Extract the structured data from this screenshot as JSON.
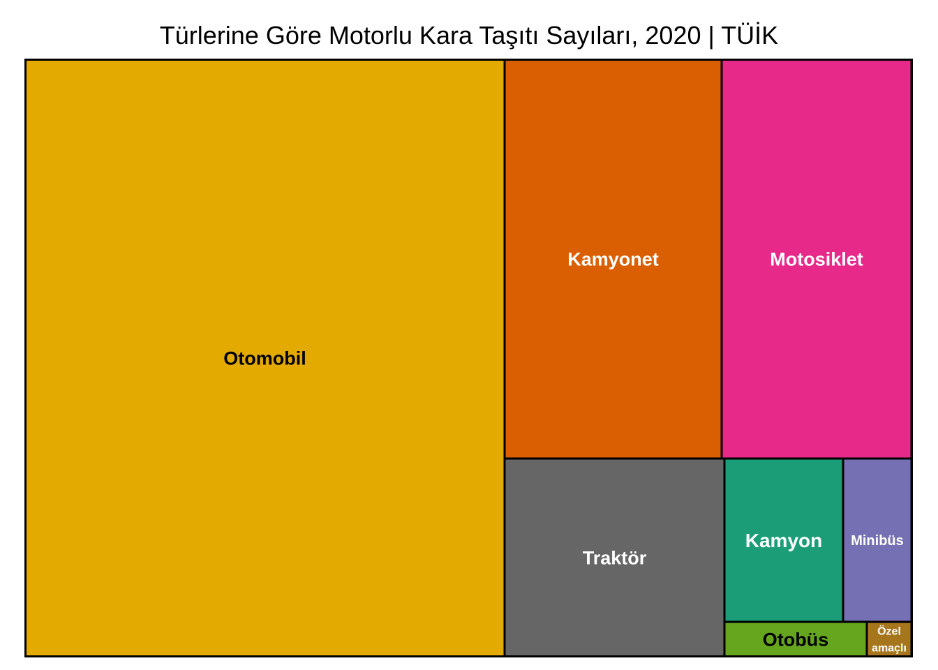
{
  "chart_data": {
    "type": "treemap",
    "title": "Türlerine Göre Motorlu Kara Taşıtı Sayıları, 2020 | TÜİK",
    "items": [
      {
        "name": "Otomobil",
        "value": 13100000,
        "color": "#E3AB01",
        "label_color": "#000000"
      },
      {
        "name": "Kamyonet",
        "value": 3890000,
        "color": "#D95F02",
        "label_color": "#FFFFFF"
      },
      {
        "name": "Motosiklet",
        "value": 3700000,
        "color": "#E7298A",
        "label_color": "#FFFFFF"
      },
      {
        "name": "Traktör",
        "value": 2000000,
        "color": "#666666",
        "label_color": "#FFFFFF"
      },
      {
        "name": "Kamyon",
        "value": 880000,
        "color": "#1B9E77",
        "label_color": "#FFFFFF"
      },
      {
        "name": "Minibüs",
        "value": 490000,
        "color": "#7570B3",
        "label_color": "#FFFFFF"
      },
      {
        "name": "Otobüs",
        "value": 220000,
        "color": "#66A61E",
        "label_color": "#000000"
      },
      {
        "name": "Özel amaçlı",
        "value": 50000,
        "color": "#A6761D",
        "label_color": "#FFFFFF"
      }
    ]
  }
}
